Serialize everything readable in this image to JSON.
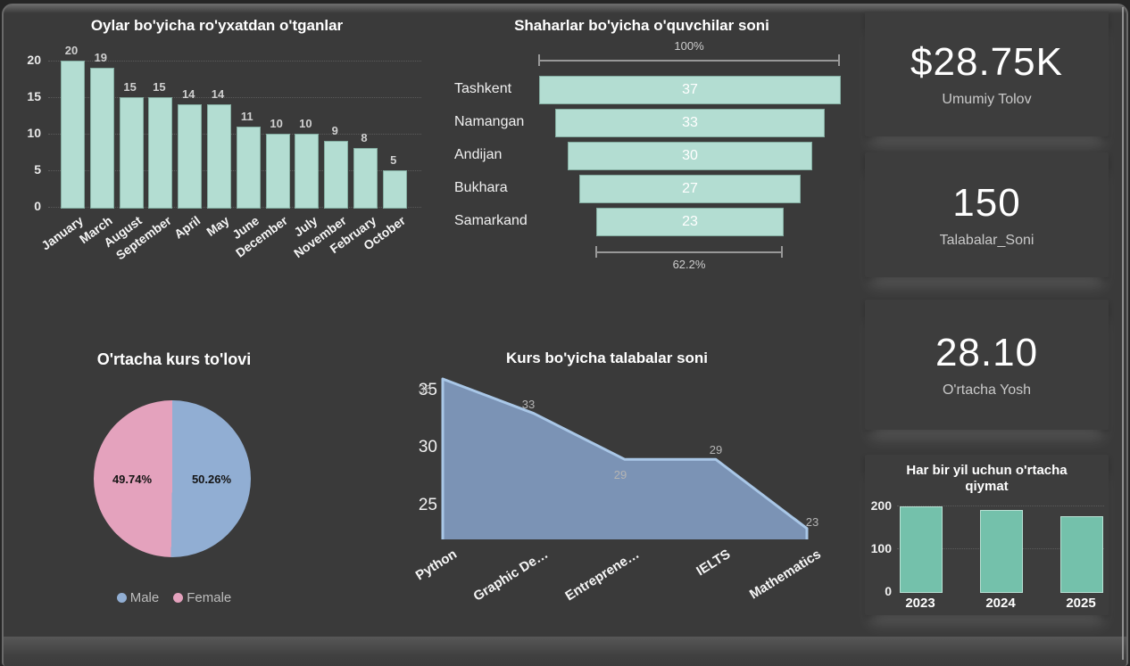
{
  "theme": {
    "background": "#3a3a3a",
    "card_background": "#3d3d3d",
    "text_primary": "#ffffff",
    "text_muted": "#c9c9c9",
    "mint": "#b3ddd2",
    "mint_border": "#84ada1",
    "teal": "#74c1ab",
    "teal_border": "#b9e2d5",
    "blue": "#91aed3",
    "pink": "#e4a2bd",
    "area_fill": "#7b93b5",
    "area_line": "#a9c7e7"
  },
  "kpi_cards": [
    {
      "value": "$28.75K",
      "label": "Umumiy Tolov"
    },
    {
      "value": "150",
      "label": "Talabalar_Soni"
    },
    {
      "value": "28.10",
      "label": "O'rtacha Yosh"
    }
  ],
  "chart_data": [
    {
      "id": "monthly_registrations",
      "type": "bar",
      "title": "Oylar bo'yicha ro'yxatdan o'tganlar",
      "categories": [
        "January",
        "March",
        "August",
        "September",
        "April",
        "May",
        "June",
        "December",
        "July",
        "November",
        "February",
        "October"
      ],
      "values": [
        20,
        19,
        15,
        15,
        14,
        14,
        11,
        10,
        10,
        9,
        8,
        5
      ],
      "yticks": [
        0,
        5,
        10,
        15,
        20
      ],
      "ylim": [
        0,
        20
      ],
      "grid": true,
      "legend_position": "none"
    },
    {
      "id": "students_by_city",
      "type": "funnel",
      "title": "Shaharlar bo'yicha o'quvchilar soni",
      "categories": [
        "Tashkent",
        "Namangan",
        "Andijan",
        "Bukhara",
        "Samarkand"
      ],
      "values": [
        37,
        33,
        30,
        27,
        23
      ],
      "top_label": "100%",
      "bottom_label": "62.2%"
    },
    {
      "id": "avg_course_payment",
      "type": "pie",
      "title": "O'rtacha kurs to'lovi",
      "slices": [
        {
          "label": "Male",
          "value": 50.26,
          "display": "50.26%",
          "color": "#91aed3"
        },
        {
          "label": "Female",
          "value": 49.74,
          "display": "49.74%",
          "color": "#e4a2bd"
        }
      ],
      "legend_position": "bottom"
    },
    {
      "id": "students_by_course",
      "type": "area",
      "title": "Kurs bo'yicha talabalar soni",
      "categories": [
        "Python",
        "Graphic De…",
        "Entreprene…",
        "IELTS",
        "Mathematics"
      ],
      "values": [
        36,
        33,
        29,
        29,
        23
      ],
      "yticks": [
        25,
        30,
        35
      ],
      "ylim": [
        22,
        36
      ],
      "legend_position": "none"
    },
    {
      "id": "yearly_average",
      "type": "bar",
      "title": "Har bir yil uchun o'rtacha qiymat",
      "categories": [
        "2023",
        "2024",
        "2025"
      ],
      "values": [
        197,
        190,
        176
      ],
      "yticks": [
        0,
        100,
        200
      ],
      "ylim": [
        0,
        200
      ],
      "grid": true,
      "legend_position": "none"
    }
  ]
}
